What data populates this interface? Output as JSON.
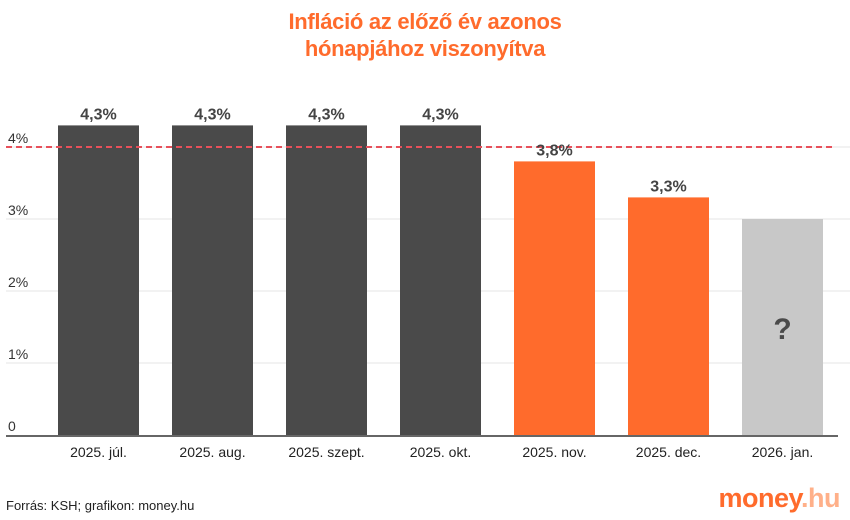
{
  "chart_data": {
    "type": "bar",
    "title_lines": [
      "Infláció az előző év azonos",
      "hónapjához viszonyítva"
    ],
    "categories": [
      "2025. júl.",
      "2025. aug.",
      "2025. szept.",
      "2025. okt.",
      "2025. nov.",
      "2025. dec.",
      "2026. jan."
    ],
    "values": [
      4.3,
      4.3,
      4.3,
      4.3,
      3.8,
      3.3,
      3.0
    ],
    "value_labels": [
      "4,3%",
      "4,3%",
      "4,3%",
      "4,3%",
      "3,8%",
      "3,3%",
      "?"
    ],
    "bar_colors": [
      "#4a4a4a",
      "#4a4a4a",
      "#4a4a4a",
      "#4a4a4a",
      "#ff6b2c",
      "#ff6b2c",
      "#c8c8c8"
    ],
    "y_ticks": [
      {
        "value": 0,
        "label": "0"
      },
      {
        "value": 1,
        "label": "1%"
      },
      {
        "value": 2,
        "label": "2%"
      },
      {
        "value": 3,
        "label": "3%"
      },
      {
        "value": 4,
        "label": "4%"
      }
    ],
    "ylim": [
      0,
      4.5
    ],
    "reference_line": {
      "value": 4.0,
      "style": "dashed",
      "color": "#e8505b"
    },
    "grid": true,
    "xlabel": "",
    "ylabel": ""
  },
  "footer": {
    "source": "Forrás: KSH; grafikon: money.hu",
    "logo_main": "money",
    "logo_suffix": ".hu"
  }
}
